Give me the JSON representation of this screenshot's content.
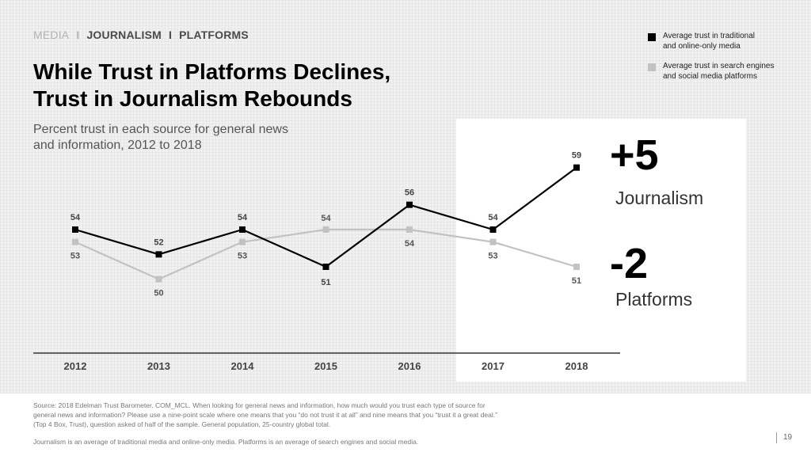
{
  "breadcrumb": {
    "items": [
      "MEDIA",
      "JOURNALISM",
      "PLATFORMS"
    ],
    "separator": "I"
  },
  "title": {
    "line1": "While Trust in Platforms Declines,",
    "line2": "Trust in Journalism Rebounds"
  },
  "subtitle": {
    "line1": "Percent trust in each source for general news",
    "line2": "and information, 2012 to 2018"
  },
  "legend": [
    {
      "line1": "Average trust in traditional",
      "line2": "and online-only media",
      "color": "#000000"
    },
    {
      "line1": "Average trust in search engines",
      "line2": "and social media platforms",
      "color": "#c2c2c2"
    }
  ],
  "callouts": {
    "journalism": {
      "change": "+5",
      "label": "Journalism"
    },
    "platforms": {
      "change": "-2",
      "label": "Platforms"
    }
  },
  "chart_data": {
    "type": "line",
    "x": [
      "2012",
      "2013",
      "2014",
      "2015",
      "2016",
      "2017",
      "2018"
    ],
    "series": [
      {
        "name": "Average trust in traditional and online-only media",
        "values": [
          54,
          52,
          54,
          51,
          56,
          54,
          59
        ],
        "color": "#000000"
      },
      {
        "name": "Average trust in search engines and social media platforms",
        "values": [
          53,
          50,
          53,
          54,
          54,
          53,
          51
        ],
        "color": "#c2c2c2"
      }
    ],
    "title": "While Trust in Platforms Declines, Trust in Journalism Rebounds",
    "subtitle": "Percent trust in each source for general news and information, 2012 to 2018",
    "ylim": [
      46,
      61
    ],
    "grid": false,
    "legend_position": "top-right"
  },
  "footnotes": {
    "source_line1": "Source: 2018 Edelman Trust Barometer. COM_MCL. When looking for general news and information, how much would you trust each type of source for",
    "source_line2": "general news and information? Please use a nine-point scale where one means that you “do not trust it at all” and nine means that you “trust it a great deal.”",
    "source_line3": "(Top 4 Box, Trust), question asked of half of the sample. General population, 25-country global total.",
    "definition": "Journalism is an average of traditional media and online-only media. Platforms is an average of search engines and social media."
  },
  "page_number": "19"
}
